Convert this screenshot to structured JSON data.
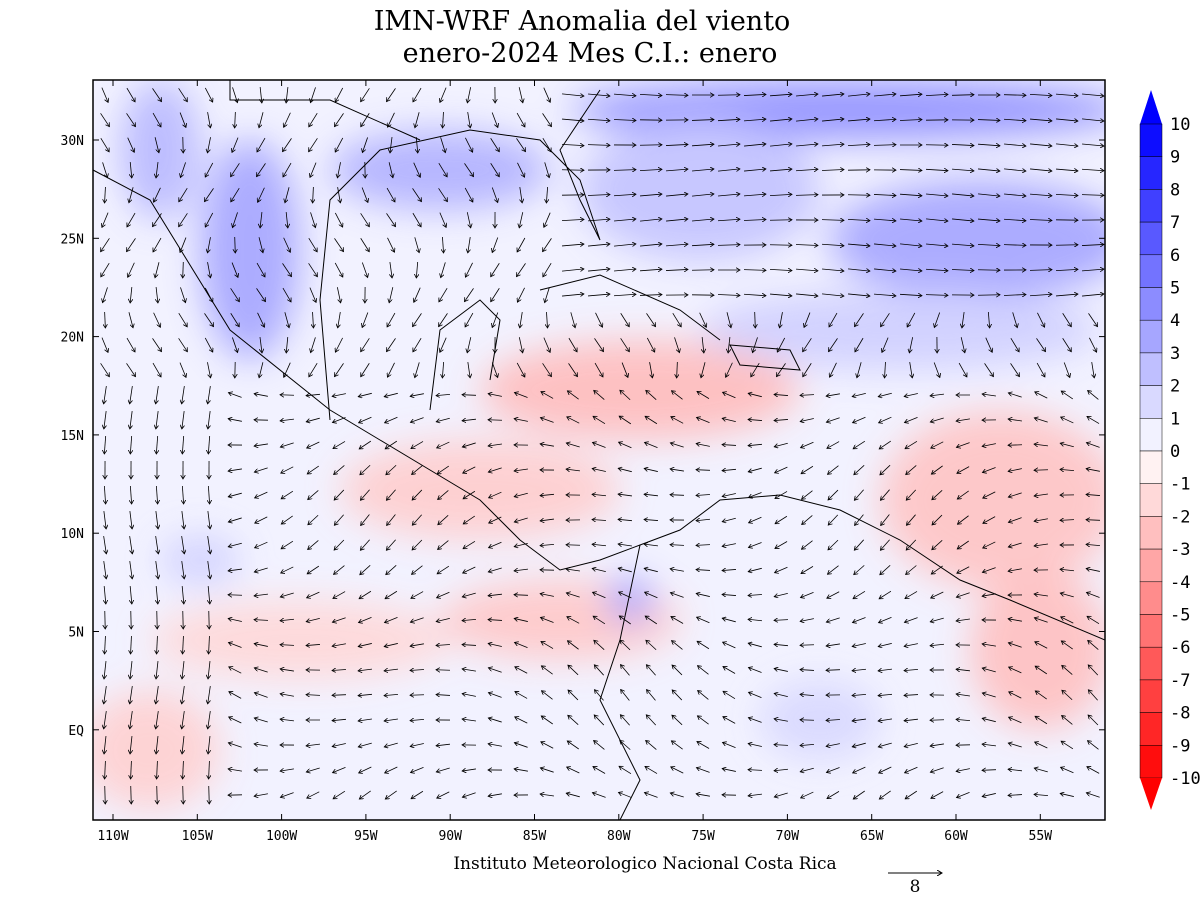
{
  "header": {
    "title_lines": [
      "IMN-WRF Anomalia del viento",
      "enero-2024 Mes C.I.: enero"
    ]
  },
  "map": {
    "lat_labels": [
      "30N",
      "25N",
      "20N",
      "15N",
      "10N",
      "5N",
      "EQ"
    ],
    "lon_labels": [
      "110W",
      "105W",
      "100W",
      "95W",
      "90W",
      "85W",
      "80W",
      "75W",
      "70W",
      "65W",
      "60W",
      "55W"
    ]
  },
  "colorbar": {
    "labels": [
      "10",
      "9",
      "8",
      "7",
      "6",
      "5",
      "4",
      "3",
      "2",
      "1",
      "0",
      "-1",
      "-2",
      "-3",
      "-4",
      "-5",
      "-6",
      "-7",
      "-8",
      "-9",
      "-10"
    ]
  },
  "footer": {
    "credit": "Instituto Meteorologico Nacional Costa Rica"
  },
  "reference_vector": {
    "label": "8"
  }
}
